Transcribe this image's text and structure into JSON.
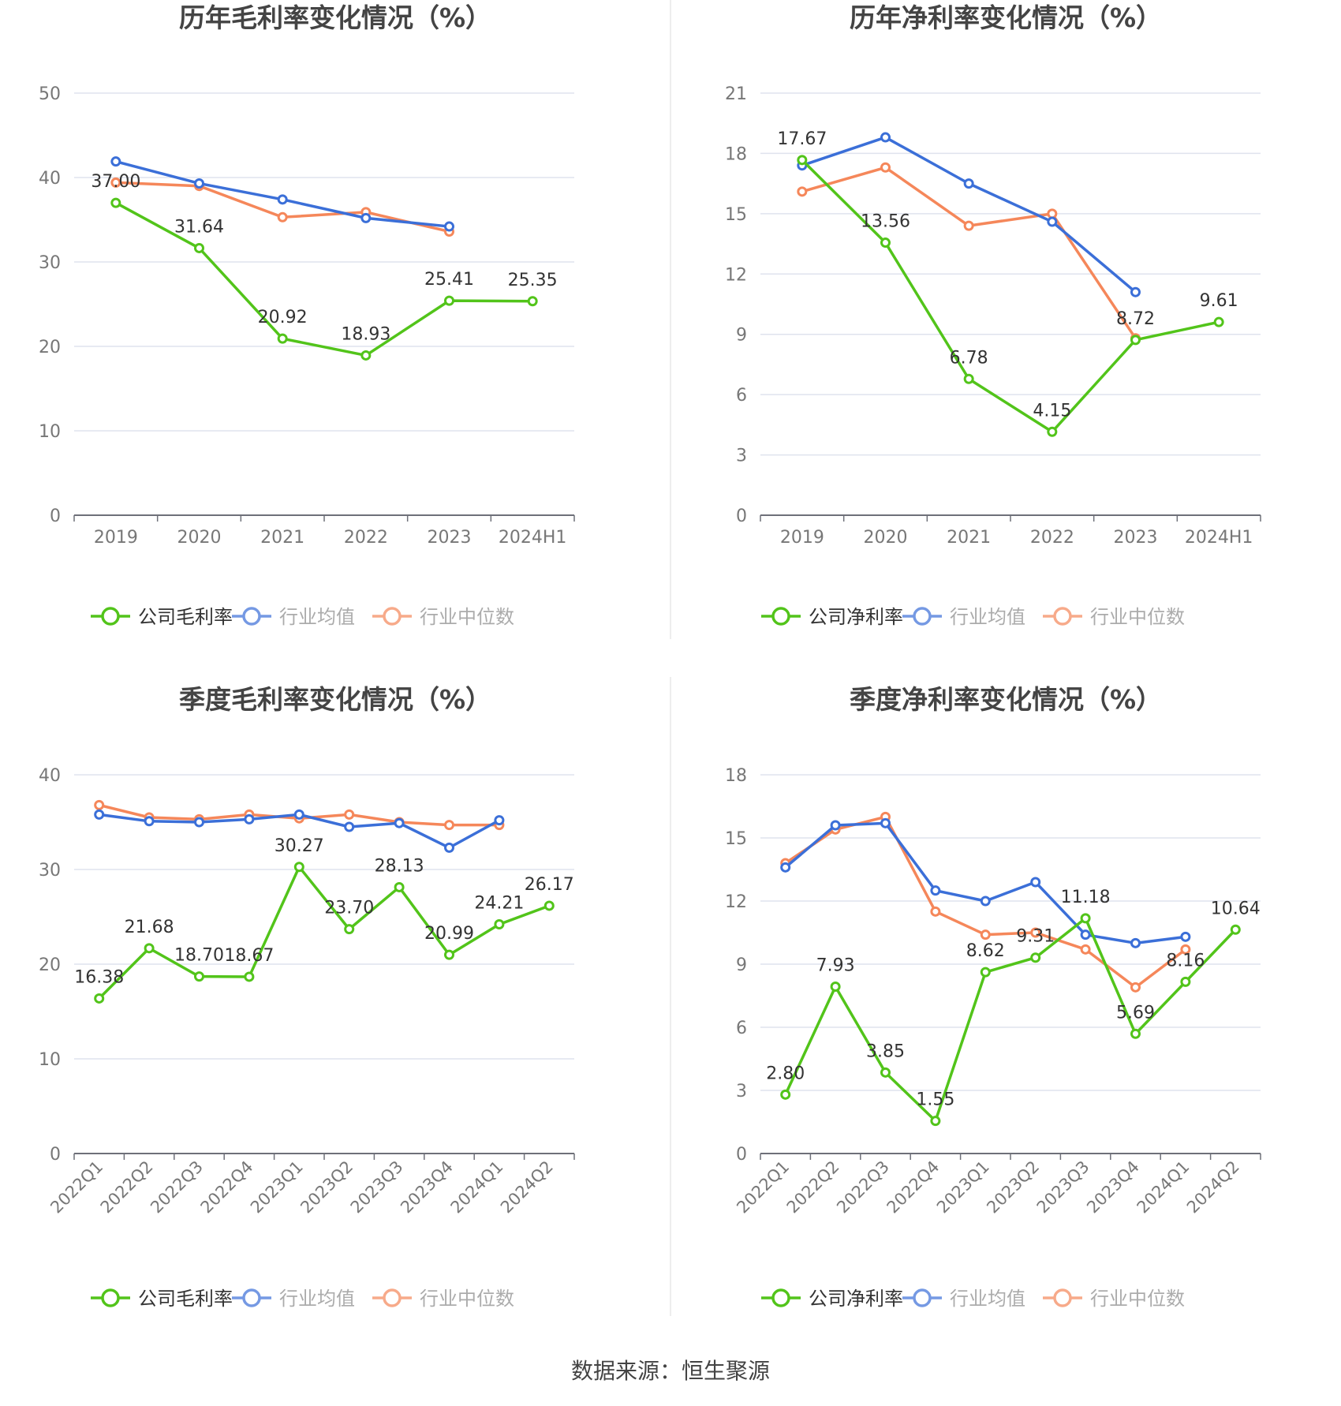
{
  "source": "数据来源：恒生聚源",
  "colors": {
    "company": "#52c41a",
    "average": "#3b6fd8",
    "median": "#f5875a",
    "grid": "#dfe3ee",
    "axis": "#6e7079",
    "tick": "#777777",
    "title": "#444444"
  },
  "chart_data": [
    {
      "type": "line",
      "title": "历年毛利率变化情况（%）",
      "categories": [
        "2019",
        "2020",
        "2021",
        "2022",
        "2023",
        "2024H1"
      ],
      "yticks": [
        "0",
        "10",
        "20",
        "30",
        "40",
        "50"
      ],
      "ylim": [
        0,
        50
      ],
      "grid": true,
      "legend_position": "bottom",
      "rotate_xlabels": false,
      "series": [
        {
          "name": "公司毛利率",
          "role": "company",
          "values": [
            37.0,
            31.64,
            20.92,
            18.93,
            25.41,
            25.35
          ],
          "labels": [
            "37.00",
            "31.64",
            "20.92",
            "18.93",
            "25.41",
            "25.35"
          ]
        },
        {
          "name": "行业均值",
          "role": "average",
          "values": [
            41.9,
            39.3,
            37.4,
            35.2,
            34.2,
            null
          ]
        },
        {
          "name": "行业中位数",
          "role": "median",
          "values": [
            39.4,
            39.0,
            35.3,
            35.9,
            33.6,
            null
          ]
        }
      ]
    },
    {
      "type": "line",
      "title": "历年净利率变化情况（%）",
      "categories": [
        "2019",
        "2020",
        "2021",
        "2022",
        "2023",
        "2024H1"
      ],
      "yticks": [
        "0",
        "3",
        "6",
        "9",
        "12",
        "15",
        "18",
        "21"
      ],
      "ylim": [
        0,
        21
      ],
      "grid": true,
      "legend_position": "bottom",
      "rotate_xlabels": false,
      "series": [
        {
          "name": "公司净利率",
          "role": "company",
          "values": [
            17.67,
            13.56,
            6.78,
            4.15,
            8.72,
            9.61
          ],
          "labels": [
            "17.67",
            "13.56",
            "6.78",
            "4.15",
            "8.72",
            "9.61"
          ]
        },
        {
          "name": "行业均值",
          "role": "average",
          "values": [
            17.4,
            18.8,
            16.5,
            14.6,
            11.1,
            null
          ]
        },
        {
          "name": "行业中位数",
          "role": "median",
          "values": [
            16.1,
            17.3,
            14.4,
            15.0,
            8.8,
            null
          ]
        }
      ]
    },
    {
      "type": "line",
      "title": "季度毛利率变化情况（%）",
      "categories": [
        "2022Q1",
        "2022Q2",
        "2022Q3",
        "2022Q4",
        "2023Q1",
        "2023Q2",
        "2023Q3",
        "2023Q4",
        "2024Q1",
        "2024Q2"
      ],
      "yticks": [
        "0",
        "10",
        "20",
        "30",
        "40"
      ],
      "ylim": [
        0,
        40
      ],
      "grid": true,
      "legend_position": "bottom",
      "rotate_xlabels": true,
      "series": [
        {
          "name": "公司毛利率",
          "role": "company",
          "values": [
            16.38,
            21.68,
            18.7,
            18.67,
            30.27,
            23.7,
            28.13,
            20.99,
            24.21,
            26.17
          ],
          "labels": [
            "16.38",
            "21.68",
            "18.70",
            "18.67",
            "30.27",
            "23.70",
            "28.13",
            "20.99",
            "24.21",
            "26.17"
          ]
        },
        {
          "name": "行业均值",
          "role": "average",
          "values": [
            35.8,
            35.1,
            35.0,
            35.3,
            35.8,
            34.5,
            34.9,
            32.3,
            35.2,
            null
          ]
        },
        {
          "name": "行业中位数",
          "role": "median",
          "values": [
            36.8,
            35.5,
            35.3,
            35.8,
            35.4,
            35.8,
            35.0,
            34.7,
            34.7,
            null
          ]
        }
      ]
    },
    {
      "type": "line",
      "title": "季度净利率变化情况（%）",
      "categories": [
        "2022Q1",
        "2022Q2",
        "2022Q3",
        "2022Q4",
        "2023Q1",
        "2023Q2",
        "2023Q3",
        "2023Q4",
        "2024Q1",
        "2024Q2"
      ],
      "yticks": [
        "0",
        "3",
        "6",
        "9",
        "12",
        "15",
        "18"
      ],
      "ylim": [
        0,
        18
      ],
      "grid": true,
      "legend_position": "bottom",
      "rotate_xlabels": true,
      "series": [
        {
          "name": "公司净利率",
          "role": "company",
          "values": [
            2.8,
            7.93,
            3.85,
            1.55,
            8.62,
            9.31,
            11.18,
            5.69,
            8.16,
            10.64
          ],
          "labels": [
            "2.80",
            "7.93",
            "3.85",
            "1.55",
            "8.62",
            "9.31",
            "11.18",
            "5.69",
            "8.16",
            "10.64"
          ]
        },
        {
          "name": "行业均值",
          "role": "average",
          "values": [
            13.6,
            15.6,
            15.7,
            12.5,
            12.0,
            12.9,
            10.4,
            10.0,
            10.3,
            null
          ]
        },
        {
          "name": "行业中位数",
          "role": "median",
          "values": [
            13.8,
            15.4,
            16.0,
            11.5,
            10.4,
            10.5,
            9.7,
            7.9,
            9.7,
            null
          ]
        }
      ]
    }
  ]
}
